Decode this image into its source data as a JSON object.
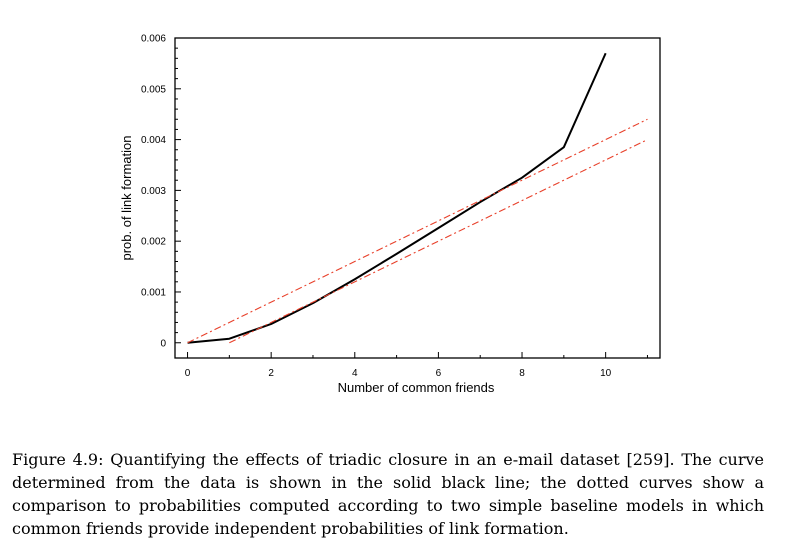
{
  "chart_data": {
    "type": "line",
    "title": "",
    "xlabel": "Number of common friends",
    "ylabel": "prob. of link formation",
    "xlim": [
      -0.3,
      11.3
    ],
    "ylim": [
      -0.0003,
      0.006
    ],
    "x_ticks": [
      0,
      2,
      4,
      6,
      8,
      10
    ],
    "x_tick_labels": [
      "0",
      "2",
      "4",
      "6",
      "8",
      "10"
    ],
    "y_ticks": [
      0,
      0.001,
      0.002,
      0.003,
      0.004,
      0.005,
      0.006
    ],
    "y_tick_labels": [
      "0",
      "0.001",
      "0.002",
      "0.003",
      "0.004",
      "0.005",
      "0.006"
    ],
    "grid": false,
    "series": [
      {
        "style": "solid",
        "color": "#000000",
        "x": [
          0,
          1,
          2,
          3,
          4,
          5,
          6,
          7,
          8,
          9,
          10
        ],
        "y": [
          0,
          8e-05,
          0.00037,
          0.00078,
          0.00125,
          0.00175,
          0.00226,
          0.00277,
          0.00325,
          0.00385,
          0.0057
        ]
      },
      {
        "style": "dashed",
        "color": "#e8402a",
        "x": [
          0,
          11
        ],
        "y": [
          0,
          0.0044
        ]
      },
      {
        "style": "dashed",
        "color": "#e8402a",
        "x": [
          1,
          11
        ],
        "y": [
          0,
          0.004
        ]
      }
    ]
  },
  "caption": "Figure 4.9: Quantifying the effects of triadic closure in an e-mail dataset [259]. The curve determined from the data is shown in the solid black line; the dotted curves show a comparison to probabilities computed according to two simple baseline models in which common friends provide independent probabilities of link formation."
}
